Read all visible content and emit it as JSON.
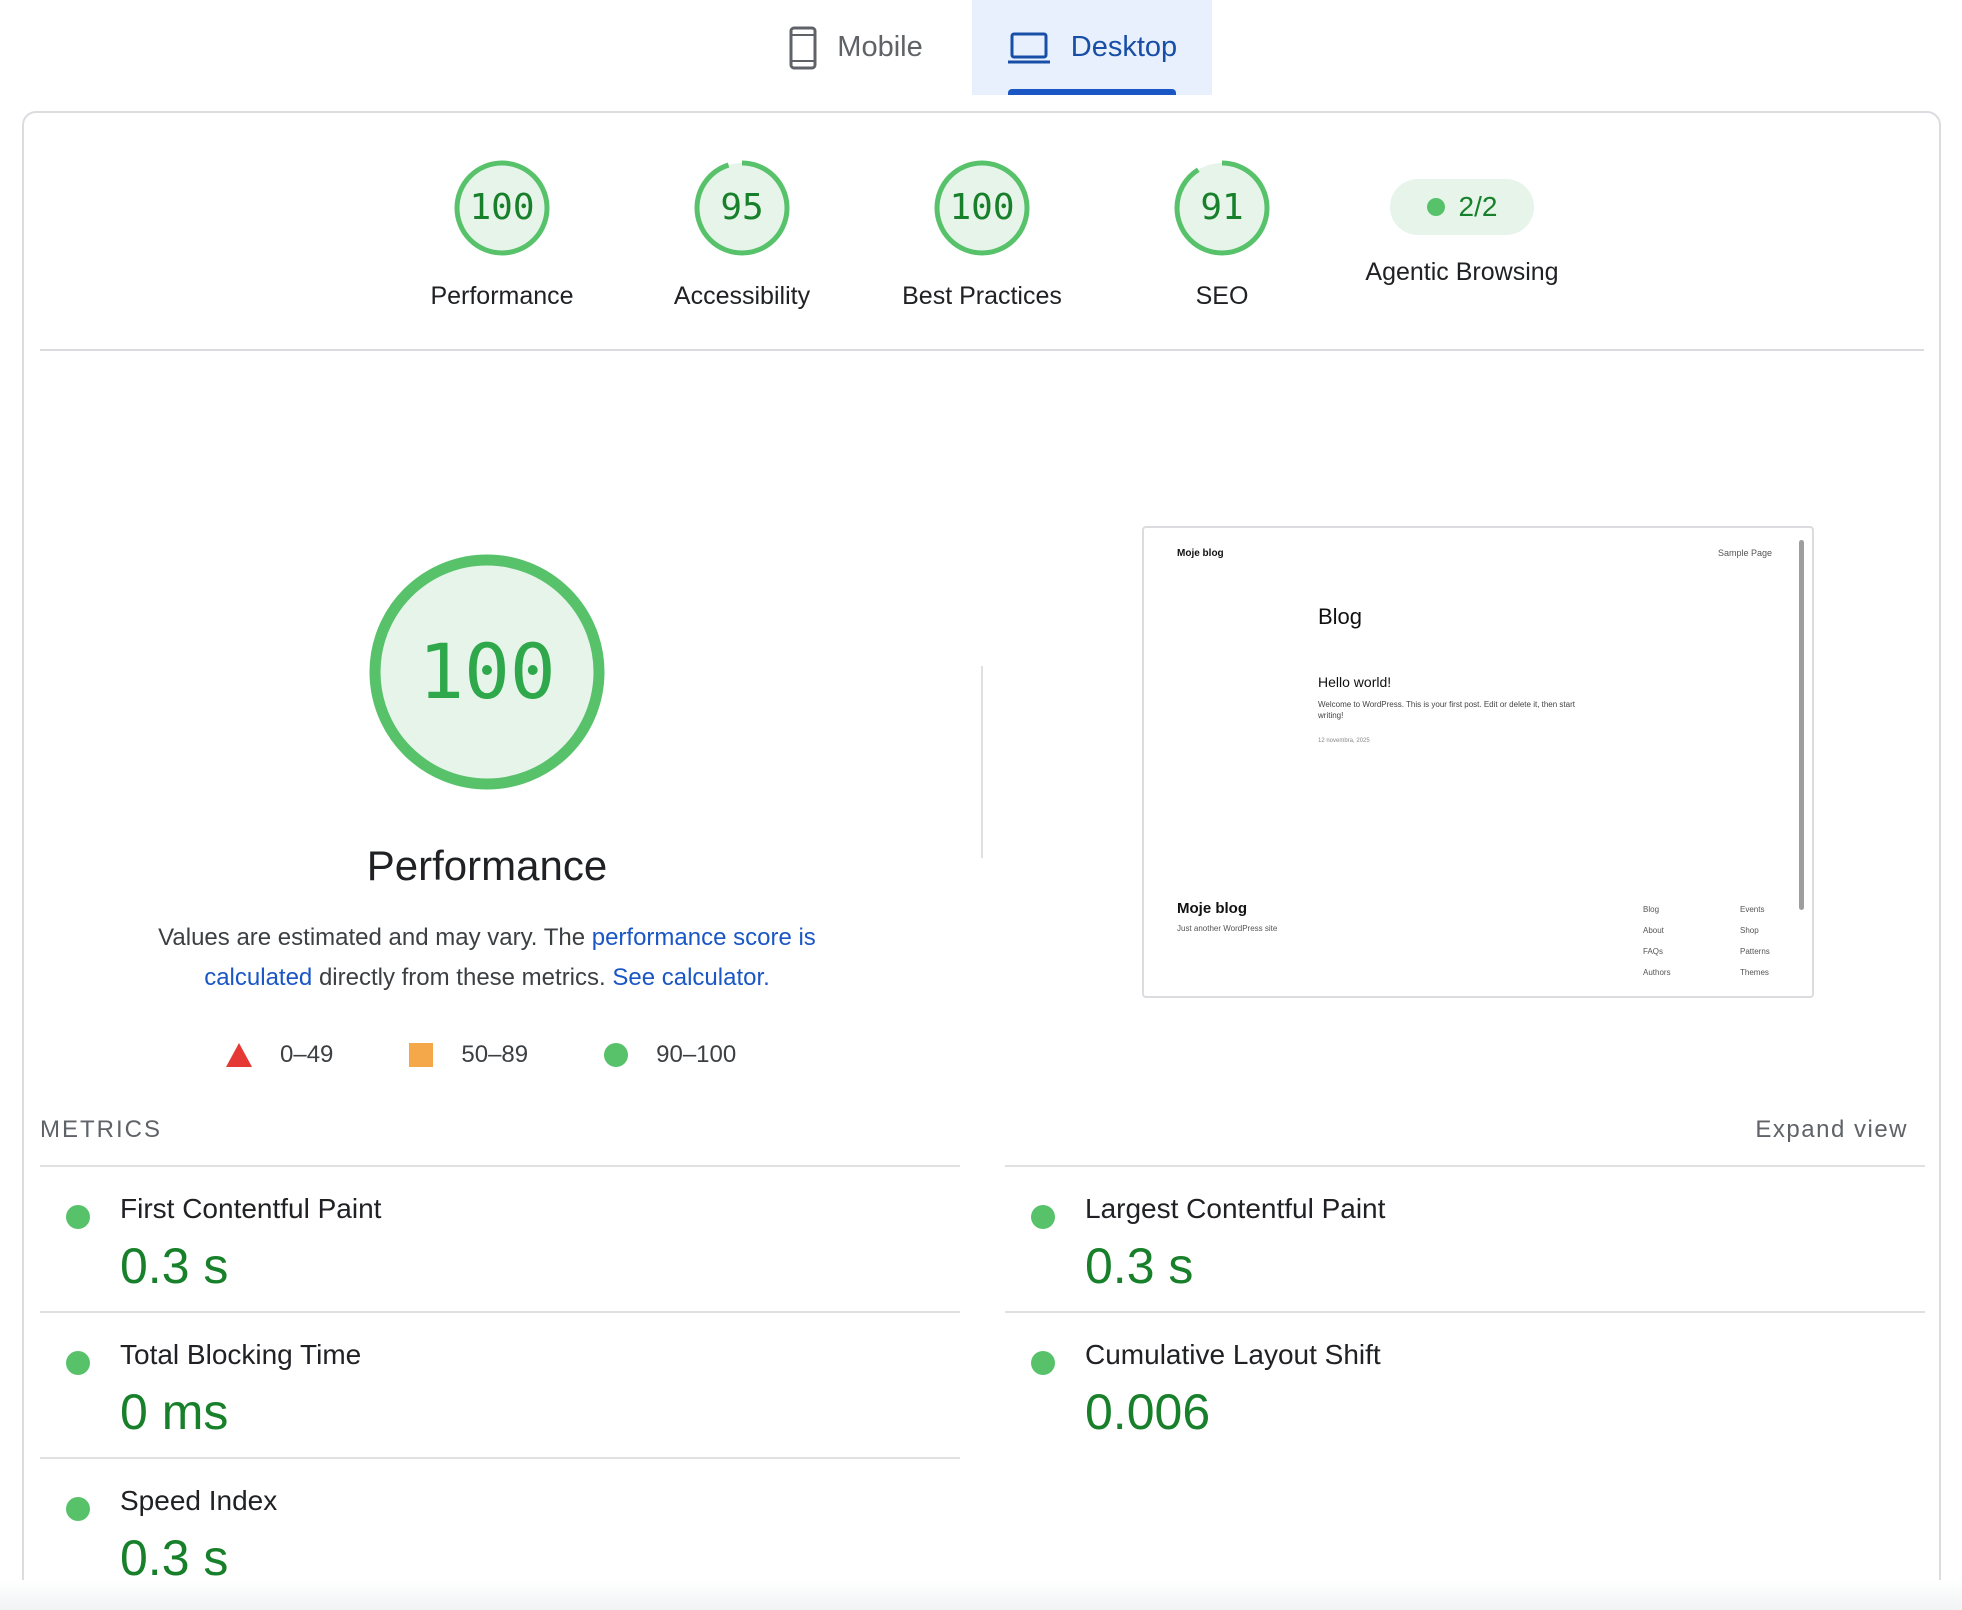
{
  "tabs": {
    "mobile_label": "Mobile",
    "desktop_label": "Desktop",
    "active": "Desktop"
  },
  "categories": [
    {
      "score": "100",
      "value": 100,
      "label": "Performance"
    },
    {
      "score": "95",
      "value": 95,
      "label": "Accessibility"
    },
    {
      "score": "100",
      "value": 100,
      "label": "Best Practices"
    },
    {
      "score": "91",
      "value": 91,
      "label": "SEO"
    }
  ],
  "agentic": {
    "value": "2/2",
    "label": "Agentic Browsing"
  },
  "performance": {
    "score": "100",
    "value": 100,
    "title": "Performance",
    "desc_prefix": "Values are estimated and may vary. The ",
    "desc_link1": "performance score is calculated",
    "desc_middle": " directly from these metrics. ",
    "desc_link2": "See calculator."
  },
  "legend": {
    "fail": "0–49",
    "average": "50–89",
    "pass": "90–100"
  },
  "thumbnail": {
    "site_title": "Moje blog",
    "sample_page": "Sample Page",
    "heading": "Blog",
    "post_title": "Hello world!",
    "post_excerpt": "Welcome to WordPress. This is your first post. Edit or delete it, then start writing!",
    "post_date": "12 novembra, 2025",
    "footer_title": "Moje blog",
    "footer_tagline": "Just another WordPress site",
    "footer_col1": [
      "Blog",
      "About",
      "FAQs",
      "Authors"
    ],
    "footer_col2": [
      "Events",
      "Shop",
      "Patterns",
      "Themes"
    ]
  },
  "metrics": {
    "heading": "METRICS",
    "expand_label": "Expand view",
    "items": [
      {
        "name": "First Contentful Paint",
        "value": "0.3 s"
      },
      {
        "name": "Largest Contentful Paint",
        "value": "0.3 s"
      },
      {
        "name": "Total Blocking Time",
        "value": "0 ms"
      },
      {
        "name": "Cumulative Layout Shift",
        "value": "0.006"
      },
      {
        "name": "Speed Index",
        "value": "0.3 s"
      }
    ]
  },
  "colors": {
    "pass_green": "#18802b",
    "pass_dot": "#57c26a",
    "gauge_fill": "#e6f4ea",
    "link_blue": "#1a56c4",
    "fail_red": "#e53935",
    "average_orange": "#f4a84a"
  }
}
